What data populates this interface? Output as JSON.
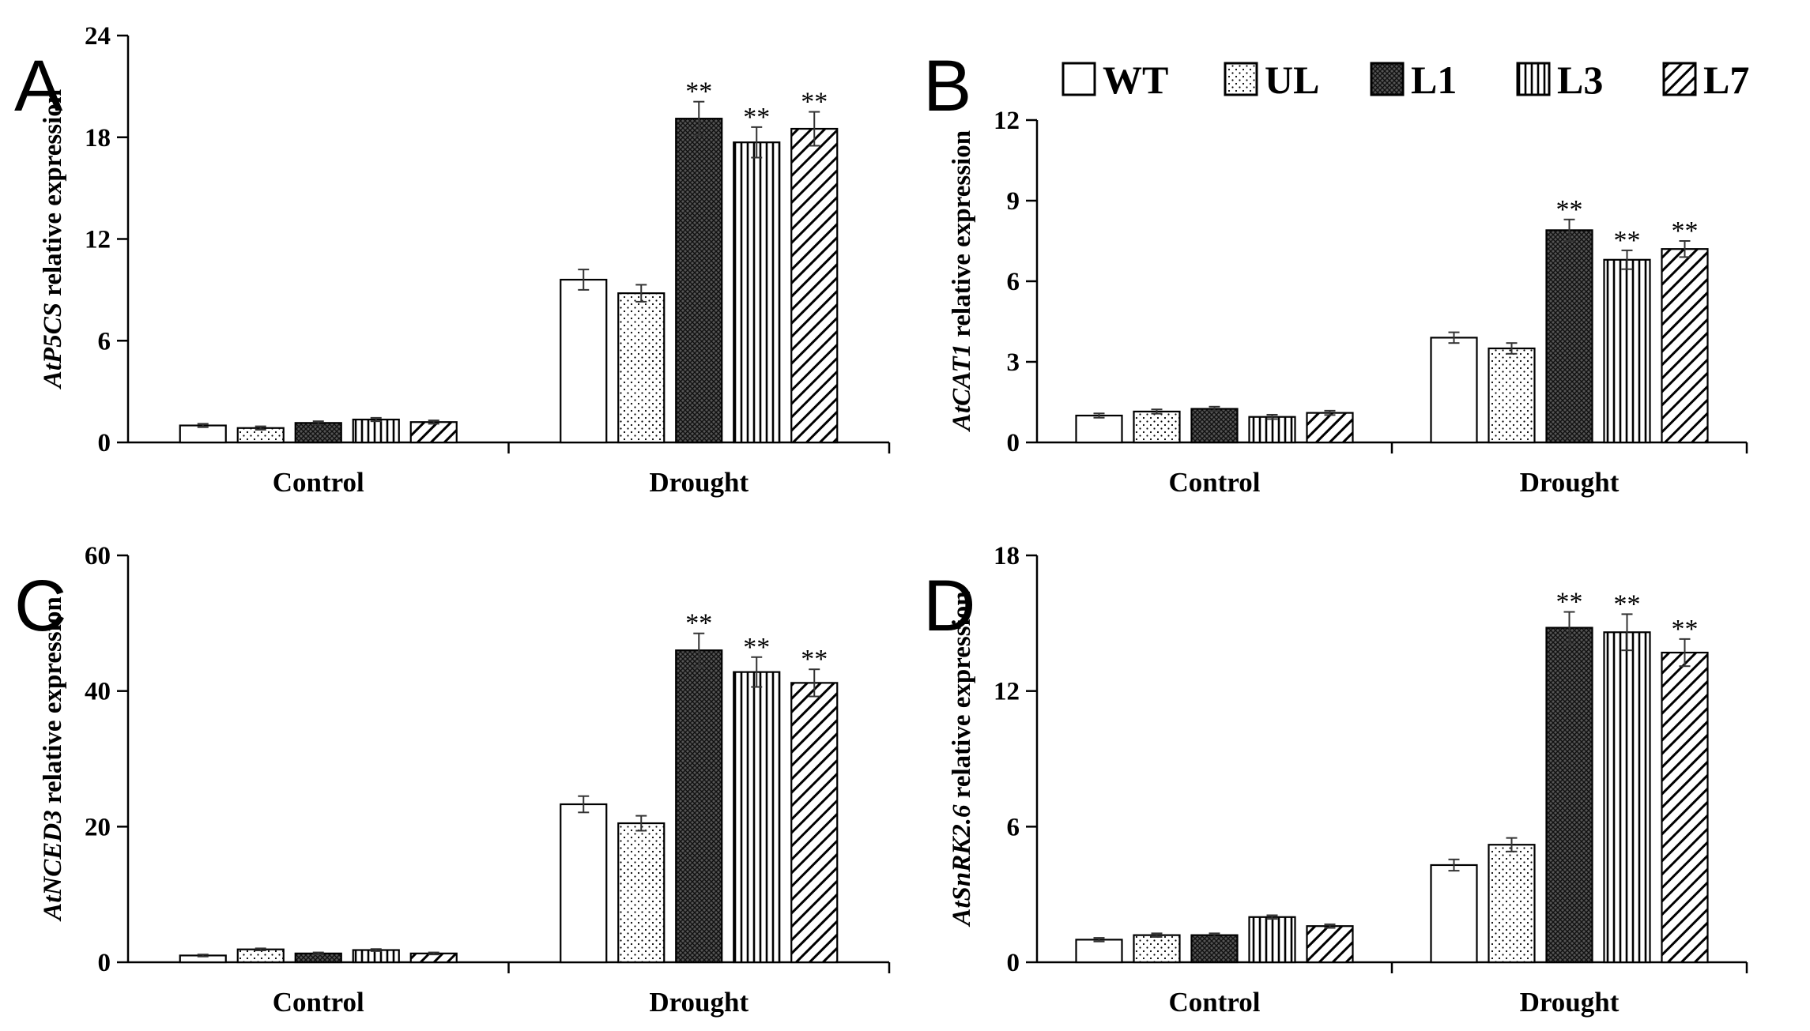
{
  "legend": {
    "entries": [
      {
        "label": "WT",
        "pattern": "white"
      },
      {
        "label": "UL",
        "pattern": "dots"
      },
      {
        "label": "L1",
        "pattern": "crosshatch"
      },
      {
        "label": "L3",
        "pattern": "vertical"
      },
      {
        "label": "L7",
        "pattern": "diagonal"
      }
    ]
  },
  "colors": {
    "ink": "#000000",
    "background": "#ffffff"
  },
  "chart_data": [
    {
      "id": "A",
      "type": "bar",
      "panel_letter": "A",
      "ylabel_gene": "AtP5CS",
      "ylabel_rest": " relative expression",
      "categories": [
        "Control",
        "Drought"
      ],
      "ylim": [
        0,
        24
      ],
      "yticks": [
        0,
        6,
        12,
        18,
        24
      ],
      "series": [
        {
          "name": "WT",
          "values": [
            1.0,
            9.6
          ],
          "errors": [
            0.1,
            0.6
          ],
          "significance": [
            "",
            ""
          ]
        },
        {
          "name": "UL",
          "values": [
            0.85,
            8.8
          ],
          "errors": [
            0.1,
            0.5
          ],
          "significance": [
            "",
            ""
          ]
        },
        {
          "name": "L1",
          "values": [
            1.15,
            19.1
          ],
          "errors": [
            0.1,
            1.0
          ],
          "significance": [
            "",
            "**"
          ]
        },
        {
          "name": "L3",
          "values": [
            1.35,
            17.7
          ],
          "errors": [
            0.1,
            0.9
          ],
          "significance": [
            "",
            "**"
          ]
        },
        {
          "name": "L7",
          "values": [
            1.2,
            18.5
          ],
          "errors": [
            0.1,
            1.0
          ],
          "significance": [
            "",
            "**"
          ]
        }
      ]
    },
    {
      "id": "B",
      "type": "bar",
      "panel_letter": "B",
      "ylabel_gene": "AtCAT1",
      "ylabel_rest": " relative expression",
      "categories": [
        "Control",
        "Drought"
      ],
      "ylim": [
        0,
        12
      ],
      "yticks": [
        0,
        3,
        6,
        9,
        12
      ],
      "series": [
        {
          "name": "WT",
          "values": [
            1.0,
            3.9
          ],
          "errors": [
            0.08,
            0.2
          ],
          "significance": [
            "",
            ""
          ]
        },
        {
          "name": "UL",
          "values": [
            1.15,
            3.5
          ],
          "errors": [
            0.08,
            0.2
          ],
          "significance": [
            "",
            ""
          ]
        },
        {
          "name": "L1",
          "values": [
            1.25,
            7.9
          ],
          "errors": [
            0.08,
            0.4
          ],
          "significance": [
            "",
            "**"
          ]
        },
        {
          "name": "L3",
          "values": [
            0.95,
            6.8
          ],
          "errors": [
            0.08,
            0.35
          ],
          "significance": [
            "",
            "**"
          ]
        },
        {
          "name": "L7",
          "values": [
            1.1,
            7.2
          ],
          "errors": [
            0.08,
            0.3
          ],
          "significance": [
            "",
            "**"
          ]
        }
      ]
    },
    {
      "id": "C",
      "type": "bar",
      "panel_letter": "C",
      "ylabel_gene": "AtNCED3",
      "ylabel_rest": " relative expression",
      "categories": [
        "Control",
        "Drought"
      ],
      "ylim": [
        0,
        60
      ],
      "yticks": [
        0,
        20,
        40,
        60
      ],
      "series": [
        {
          "name": "WT",
          "values": [
            1.0,
            23.3
          ],
          "errors": [
            0.15,
            1.2
          ],
          "significance": [
            "",
            ""
          ]
        },
        {
          "name": "UL",
          "values": [
            1.9,
            20.5
          ],
          "errors": [
            0.15,
            1.1
          ],
          "significance": [
            "",
            ""
          ]
        },
        {
          "name": "L1",
          "values": [
            1.3,
            46.0
          ],
          "errors": [
            0.15,
            2.5
          ],
          "significance": [
            "",
            "**"
          ]
        },
        {
          "name": "L3",
          "values": [
            1.8,
            42.8
          ],
          "errors": [
            0.15,
            2.2
          ],
          "significance": [
            "",
            "**"
          ]
        },
        {
          "name": "L7",
          "values": [
            1.3,
            41.2
          ],
          "errors": [
            0.15,
            2.0
          ],
          "significance": [
            "",
            "**"
          ]
        }
      ]
    },
    {
      "id": "D",
      "type": "bar",
      "panel_letter": "D",
      "ylabel_gene": "AtSnRK2.6",
      "ylabel_rest": " relative expression",
      "categories": [
        "Control",
        "Drought"
      ],
      "ylim": [
        0,
        18
      ],
      "yticks": [
        0,
        6,
        12,
        18
      ],
      "series": [
        {
          "name": "WT",
          "values": [
            1.0,
            4.3
          ],
          "errors": [
            0.08,
            0.25
          ],
          "significance": [
            "",
            ""
          ]
        },
        {
          "name": "UL",
          "values": [
            1.2,
            5.2
          ],
          "errors": [
            0.08,
            0.3
          ],
          "significance": [
            "",
            ""
          ]
        },
        {
          "name": "L1",
          "values": [
            1.2,
            14.8
          ],
          "errors": [
            0.08,
            0.7
          ],
          "significance": [
            "",
            "**"
          ]
        },
        {
          "name": "L3",
          "values": [
            2.0,
            14.6
          ],
          "errors": [
            0.08,
            0.8
          ],
          "significance": [
            "",
            "**"
          ]
        },
        {
          "name": "L7",
          "values": [
            1.6,
            13.7
          ],
          "errors": [
            0.08,
            0.6
          ],
          "significance": [
            "",
            "**"
          ]
        }
      ]
    }
  ]
}
